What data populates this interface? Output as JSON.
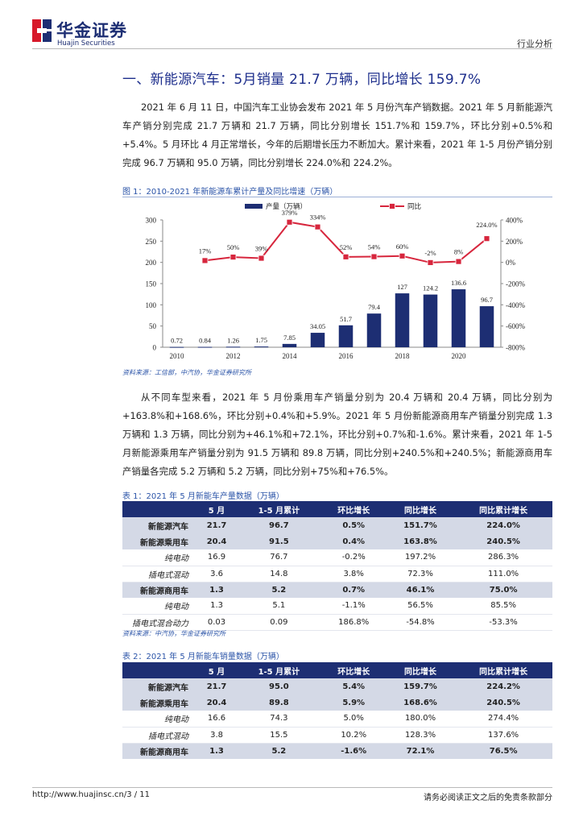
{
  "header": {
    "logo_cn": "华金证券",
    "logo_en": "Huajin Securities",
    "section_label": "行业分析"
  },
  "heading": "一、新能源汽车：5月销量 21.7 万辆，同比增长 159.7%",
  "paragraph1": "2021 年 6 月 11 日，中国汽车工业协会发布 2021 年 5 月份汽车产销数据。2021 年 5 月新能源汽车产销分别完成 21.7 万辆和 21.7 万辆，同比分别增长 151.7%和 159.7%，环比分别+0.5%和+5.4%。5 月环比 4 月正常增长，今年的后期增长压力不断加大。累计来看，2021 年 1-5 月份产销分别完成 96.7 万辆和 95.0 万辆，同比分别增长 224.0%和 224.2%。",
  "figure1": {
    "title": "图 1：2010-2021 年新能源车累计产量及同比增速（万辆）",
    "source": "资料来源：工信部，中汽协，华金证券研究所"
  },
  "chart_data": {
    "type": "bar+line",
    "title": "2010-2021 年新能源车累计产量及同比增速（万辆）",
    "categories": [
      "2010",
      "2011",
      "2012",
      "2013",
      "2014",
      "2015",
      "2016",
      "2017",
      "2018",
      "2019",
      "2020",
      "2021"
    ],
    "x_tick_labels": [
      "2010",
      "2012",
      "2014",
      "2016",
      "2018",
      "2020"
    ],
    "series": [
      {
        "name": "产量（万辆）",
        "type": "bar",
        "axis": "left",
        "color": "#1d2e73",
        "values": [
          0.72,
          0.84,
          1.26,
          1.75,
          7.85,
          34.05,
          51.7,
          79.4,
          127,
          124.2,
          136.6,
          96.7
        ],
        "labels": [
          "0.72",
          "0.84",
          "1.26",
          "1.75",
          "7.85",
          "34.05",
          "51.7",
          "79.4",
          "127",
          "124.2",
          "136.6",
          "96.7"
        ]
      },
      {
        "name": "同比",
        "type": "line",
        "axis": "right",
        "color": "#d7263d",
        "values": [
          null,
          17,
          50,
          39,
          379,
          334,
          52,
          54,
          60,
          -2,
          8,
          224
        ],
        "labels": [
          null,
          "17%",
          "50%",
          "39%",
          "379%",
          "334%",
          "52%",
          "54%",
          "60%",
          "-2%",
          "8%",
          "224.0%"
        ]
      }
    ],
    "left_axis": {
      "min": 0,
      "max": 300,
      "ticks": [
        "0",
        "50",
        "100",
        "150",
        "200",
        "250",
        "300"
      ]
    },
    "right_axis": {
      "min": -800,
      "max": 400,
      "ticks": [
        "-800%",
        "-600%",
        "-400%",
        "-200%",
        "0%",
        "200%",
        "400%"
      ]
    },
    "legend_position": "top"
  },
  "paragraph2": "从不同车型来看，2021 年 5 月份乘用车产销量分别为 20.4 万辆和 20.4 万辆，同比分别为+163.8%和+168.6%，环比分别+0.4%和+5.9%。2021 年 5 月份新能源商用车产销量分别完成 1.3 万辆和 1.3 万辆，同比分别为+46.1%和+72.1%，环比分别+0.7%和-1.6%。累计来看，2021 年 1-5 月新能源乘用车产销量分别为 91.5 万辆和 89.8 万辆，同比分别+240.5%和+240.5%；新能源商用车产销量各完成 5.2 万辆和 5.2 万辆，同比分别+75%和+76.5%。",
  "table1": {
    "title": "表 1：2021 年 5 月新能车产量数据（万辆）",
    "headers": [
      "",
      "5 月",
      "1-5 月累计",
      "环比增长",
      "同比增长",
      "同比累计增长"
    ],
    "rows": [
      {
        "label": "新能源汽车",
        "cells": [
          "21.7",
          "96.7",
          "0.5%",
          "151.7%",
          "224.0%"
        ]
      },
      {
        "label": "新能源乘用车",
        "cells": [
          "20.4",
          "91.5",
          "0.4%",
          "163.8%",
          "240.5%"
        ]
      },
      {
        "label": "纯电动",
        "cells": [
          "16.9",
          "76.7",
          "-0.2%",
          "197.2%",
          "286.3%"
        ]
      },
      {
        "label": "插电式混动",
        "cells": [
          "3.6",
          "14.8",
          "3.8%",
          "72.3%",
          "111.0%"
        ]
      },
      {
        "label": "新能源商用车",
        "cells": [
          "1.3",
          "5.2",
          "0.7%",
          "46.1%",
          "75.0%"
        ]
      },
      {
        "label": "纯电动",
        "cells": [
          "1.3",
          "5.1",
          "-1.1%",
          "56.5%",
          "85.5%"
        ]
      },
      {
        "label": "插电式混合动力",
        "cells": [
          "0.03",
          "0.09",
          "186.8%",
          "-54.8%",
          "-53.3%"
        ]
      }
    ],
    "source": "资料来源：中汽协，华金证券研究所"
  },
  "table2": {
    "title": "表 2：2021 年 5 月新能车销量数据（万辆）",
    "headers": [
      "",
      "5 月",
      "1-5 月累计",
      "环比增长",
      "同比增长",
      "同比累计增长"
    ],
    "rows": [
      {
        "label": "新能源汽车",
        "cells": [
          "21.7",
          "95.0",
          "5.4%",
          "159.7%",
          "224.2%"
        ]
      },
      {
        "label": "新能源乘用车",
        "cells": [
          "20.4",
          "89.8",
          "5.9%",
          "168.6%",
          "240.5%"
        ]
      },
      {
        "label": "纯电动",
        "cells": [
          "16.6",
          "74.3",
          "5.0%",
          "180.0%",
          "274.4%"
        ]
      },
      {
        "label": "插电式混动",
        "cells": [
          "3.8",
          "15.5",
          "10.2%",
          "128.3%",
          "137.6%"
        ]
      },
      {
        "label": "新能源商用车",
        "cells": [
          "1.3",
          "5.2",
          "-1.6%",
          "72.1%",
          "76.5%"
        ]
      }
    ]
  },
  "footer": {
    "url": "http://www.huajinsc.cn/3 / 11",
    "disclaimer": "请务必阅读正文之后的免责条款部分"
  }
}
